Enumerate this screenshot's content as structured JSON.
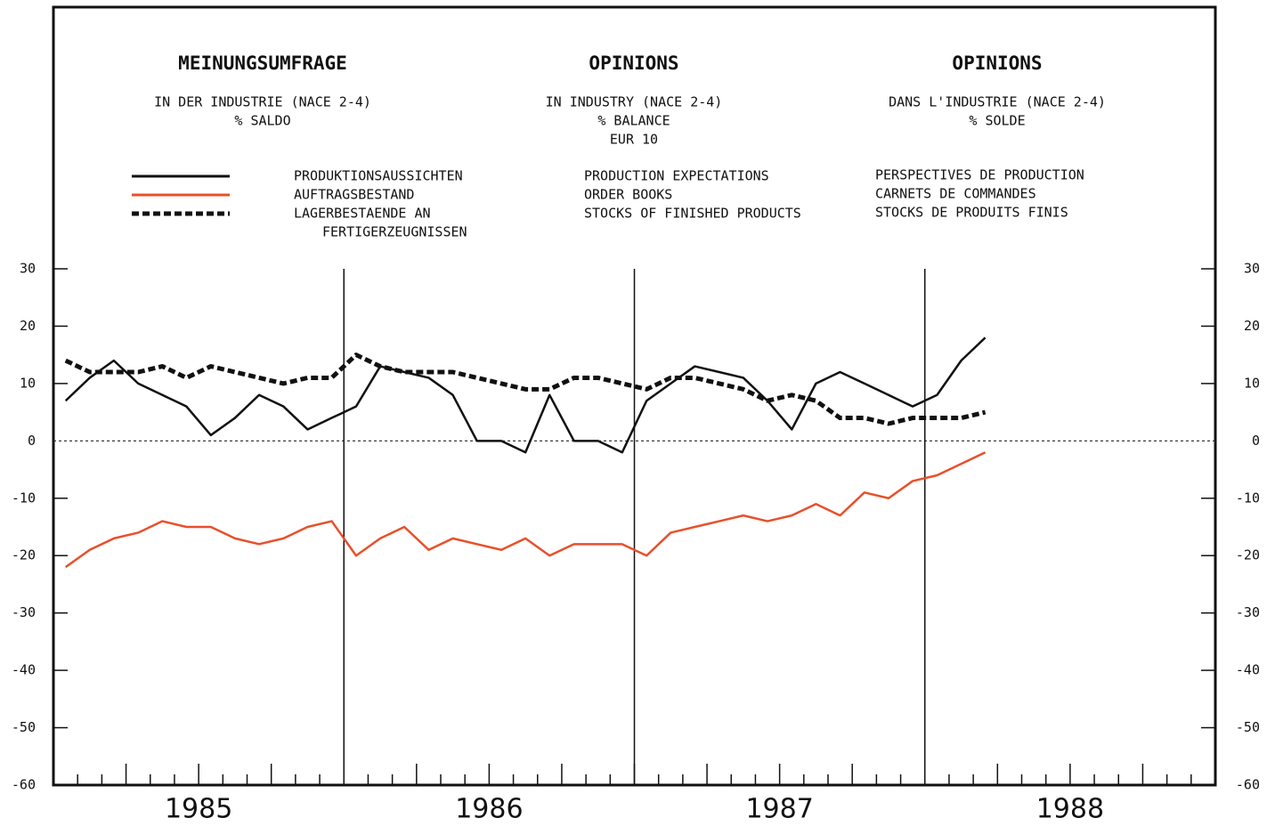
{
  "chart_data": {
    "type": "line",
    "headers": [
      {
        "title": "MEINUNGSUMFRAGE",
        "lines": [
          "IN DER INDUSTRIE (NACE 2-4)",
          "% SALDO"
        ]
      },
      {
        "title": "OPINIONS",
        "lines": [
          "IN INDUSTRY (NACE 2-4)",
          "% BALANCE",
          "EUR 10"
        ]
      },
      {
        "title": "OPINIONS",
        "lines": [
          "DANS L'INDUSTRIE (NACE 2-4)",
          "% SOLDE"
        ]
      }
    ],
    "legend_de": [
      "PRODUKTIONSAUSSICHTEN",
      "AUFTRAGSBESTAND",
      "LAGERBESTAENDE AN",
      "FERTIGERZEUGNISSEN"
    ],
    "legend_fr": [
      "PERSPECTIVES DE PRODUCTION",
      "CARNETS DE COMMANDES",
      "STOCKS DE PRODUITS FINIS"
    ],
    "categories": [
      "1985",
      "1986",
      "1987",
      "1988"
    ],
    "xlim": [
      1985,
      1989
    ],
    "xticks": [
      1986,
      1987,
      1988
    ],
    "ylim": [
      -60,
      30
    ],
    "yticks": [
      30,
      20,
      10,
      0,
      -10,
      -20,
      -30,
      -40,
      -50,
      -60
    ],
    "x": [
      1985.042,
      1985.125,
      1985.208,
      1985.292,
      1985.375,
      1985.458,
      1985.542,
      1985.625,
      1985.708,
      1985.792,
      1985.875,
      1985.958,
      1986.042,
      1986.125,
      1986.208,
      1986.292,
      1986.375,
      1986.458,
      1986.542,
      1986.625,
      1986.708,
      1986.792,
      1986.875,
      1986.958,
      1987.042,
      1987.125,
      1987.208,
      1987.292,
      1987.375,
      1987.458,
      1987.542,
      1987.625,
      1987.708,
      1987.792,
      1987.875,
      1987.958,
      1988.042,
      1988.125,
      1988.208
    ],
    "series": [
      {
        "name": "PRODUCTION EXPECTATIONS",
        "color": "#111111",
        "style": "solid",
        "values": [
          7,
          11,
          14,
          10,
          8,
          6,
          1,
          4,
          8,
          6,
          2,
          4,
          6,
          13,
          12,
          11,
          8,
          0,
          0,
          -2,
          8,
          0,
          0,
          -2,
          7,
          10,
          13,
          12,
          11,
          7,
          2,
          10,
          12,
          10,
          8,
          6,
          8,
          14,
          18
        ]
      },
      {
        "name": "ORDER BOOKS",
        "color": "#e8502a",
        "style": "solid",
        "values": [
          -22,
          -19,
          -17,
          -16,
          -14,
          -15,
          -15,
          -17,
          -18,
          -17,
          -15,
          -14,
          -20,
          -17,
          -15,
          -19,
          -17,
          -18,
          -19,
          -17,
          -20,
          -18,
          -18,
          -18,
          -20,
          -16,
          -15,
          -14,
          -13,
          -14,
          -13,
          -11,
          -13,
          -9,
          -10,
          -7,
          -6,
          -4,
          -2
        ]
      },
      {
        "name": "STOCKS OF FINISHED PRODUCTS",
        "color": "#111111",
        "style": "dashed",
        "values": [
          14,
          12,
          12,
          12,
          13,
          11,
          13,
          12,
          11,
          10,
          11,
          11,
          15,
          13,
          12,
          12,
          12,
          11,
          10,
          9,
          9,
          11,
          11,
          10,
          9,
          11,
          11,
          10,
          9,
          7,
          8,
          7,
          4,
          4,
          3,
          4,
          4,
          4,
          5
        ]
      }
    ]
  }
}
